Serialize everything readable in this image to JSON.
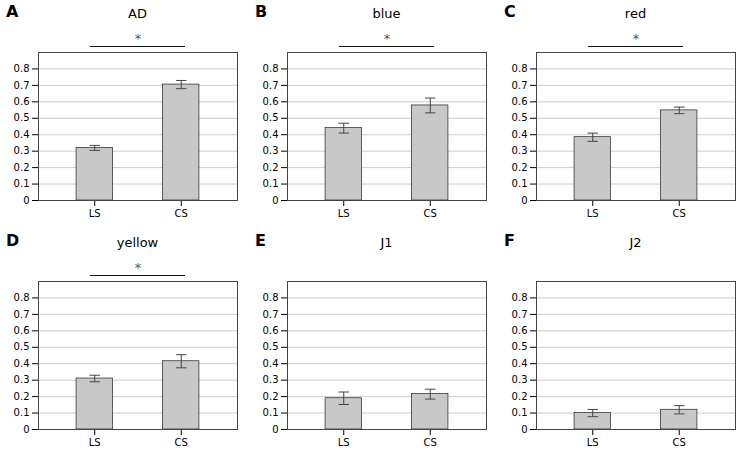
{
  "chart_data": [
    {
      "type": "bar",
      "title": "AD",
      "categories": [
        "LS",
        "CS"
      ],
      "values": [
        0.32,
        0.705
      ],
      "errors": [
        0.015,
        0.025
      ],
      "color": "#c8c8c8",
      "ylim": [
        0,
        0.9
      ],
      "yticks": [
        0,
        0.1,
        0.2,
        0.3,
        0.4,
        0.5,
        0.6,
        0.7,
        0.8
      ],
      "grid": true,
      "annotations": [
        {
          "text": "A"
        },
        {
          "text": "*",
          "between": [
            "LS",
            "CS"
          ]
        }
      ]
    },
    {
      "type": "bar",
      "title": "blue",
      "categories": [
        "LS",
        "CS"
      ],
      "values": [
        0.44,
        0.578
      ],
      "errors": [
        0.03,
        0.045
      ],
      "color": "#c8c8c8",
      "ylim": [
        0,
        0.9
      ],
      "yticks": [
        0,
        0.1,
        0.2,
        0.3,
        0.4,
        0.5,
        0.6,
        0.7,
        0.8
      ],
      "grid": true,
      "annotations": [
        {
          "text": "B"
        },
        {
          "text": "*",
          "between": [
            "LS",
            "CS"
          ]
        }
      ]
    },
    {
      "type": "bar",
      "title": "red",
      "categories": [
        "LS",
        "CS"
      ],
      "values": [
        0.385,
        0.548
      ],
      "errors": [
        0.025,
        0.02
      ],
      "color": "#c8c8c8",
      "ylim": [
        0,
        0.9
      ],
      "yticks": [
        0,
        0.1,
        0.2,
        0.3,
        0.4,
        0.5,
        0.6,
        0.7,
        0.8
      ],
      "grid": true,
      "annotations": [
        {
          "text": "C"
        },
        {
          "text": "*",
          "between": [
            "LS",
            "CS"
          ]
        }
      ]
    },
    {
      "type": "bar",
      "title": "yellow",
      "categories": [
        "LS",
        "CS"
      ],
      "values": [
        0.31,
        0.415
      ],
      "errors": [
        0.02,
        0.04
      ],
      "color": "#c8c8c8",
      "ylim": [
        0,
        0.9
      ],
      "yticks": [
        0,
        0.1,
        0.2,
        0.3,
        0.4,
        0.5,
        0.6,
        0.7,
        0.8
      ],
      "grid": true,
      "annotations": [
        {
          "text": "D"
        },
        {
          "text": "*",
          "between": [
            "LS",
            "CS"
          ]
        }
      ]
    },
    {
      "type": "bar",
      "title": "J1",
      "categories": [
        "LS",
        "CS"
      ],
      "values": [
        0.19,
        0.215
      ],
      "errors": [
        0.038,
        0.03
      ],
      "color": "#c8c8c8",
      "ylim": [
        0,
        0.9
      ],
      "yticks": [
        0,
        0.1,
        0.2,
        0.3,
        0.4,
        0.5,
        0.6,
        0.7,
        0.8
      ],
      "grid": true,
      "annotations": [
        {
          "text": "E"
        }
      ]
    },
    {
      "type": "bar",
      "title": "J2",
      "categories": [
        "LS",
        "CS"
      ],
      "values": [
        0.1,
        0.12
      ],
      "errors": [
        0.022,
        0.025
      ],
      "color": "#c8c8c8",
      "ylim": [
        0,
        0.9
      ],
      "yticks": [
        0,
        0.1,
        0.2,
        0.3,
        0.4,
        0.5,
        0.6,
        0.7,
        0.8
      ],
      "grid": true,
      "annotations": [
        {
          "text": "F"
        }
      ]
    }
  ]
}
